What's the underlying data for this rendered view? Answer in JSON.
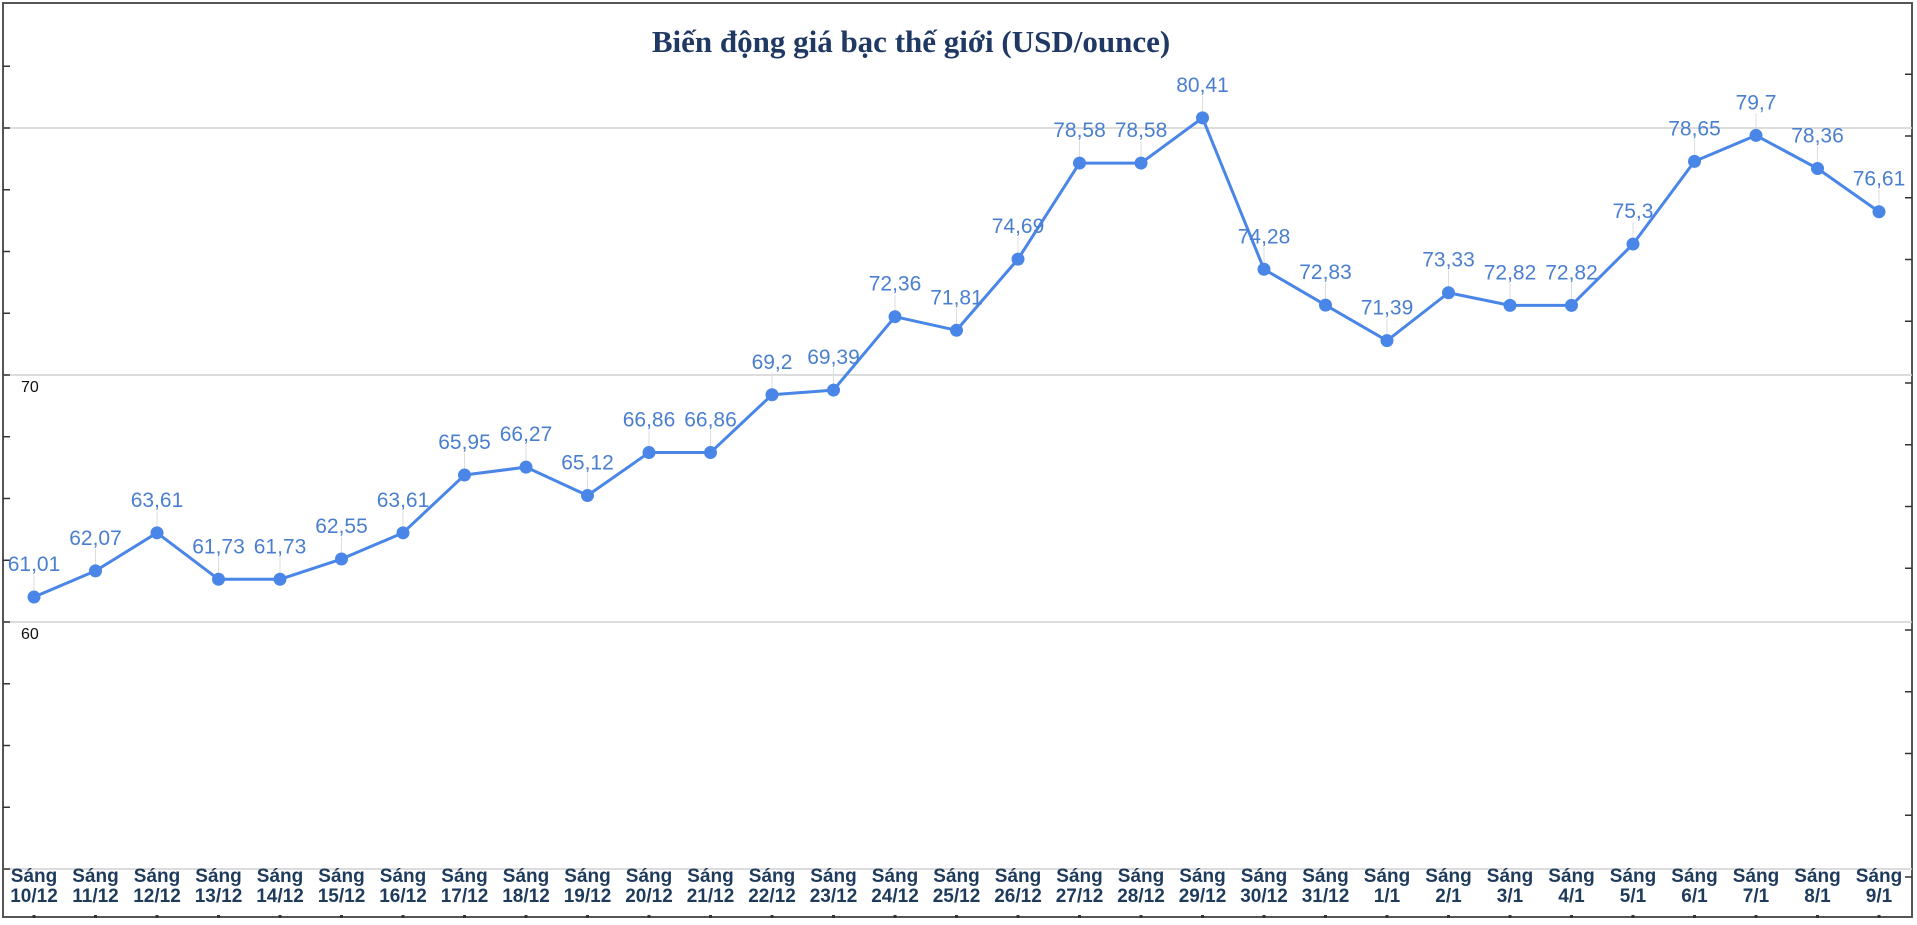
{
  "chart_data": {
    "type": "line",
    "title": "Biến động giá bạc thế giới (USD/ounce)",
    "xlabel": "",
    "ylabel": "",
    "ylim": [
      50,
      85
    ],
    "y_ticks": [
      60,
      70
    ],
    "grid": true,
    "legend": "none",
    "colors": {
      "line": "#4a86e8",
      "label": "#4a7fd0",
      "xlabel": "#1f3b5c",
      "title": "#1f3864"
    },
    "categories": [
      [
        "Sáng",
        "10/12"
      ],
      [
        "Sáng",
        "11/12"
      ],
      [
        "Sáng",
        "12/12"
      ],
      [
        "Sáng",
        "13/12"
      ],
      [
        "Sáng",
        "14/12"
      ],
      [
        "Sáng",
        "15/12"
      ],
      [
        "Sáng",
        "16/12"
      ],
      [
        "Sáng",
        "17/12"
      ],
      [
        "Sáng",
        "18/12"
      ],
      [
        "Sáng",
        "19/12"
      ],
      [
        "Sáng",
        "20/12"
      ],
      [
        "Sáng",
        "21/12"
      ],
      [
        "Sáng",
        "22/12"
      ],
      [
        "Sáng",
        "23/12"
      ],
      [
        "Sáng",
        "24/12"
      ],
      [
        "Sáng",
        "25/12"
      ],
      [
        "Sáng",
        "26/12"
      ],
      [
        "Sáng",
        "27/12"
      ],
      [
        "Sáng",
        "28/12"
      ],
      [
        "Sáng",
        "29/12"
      ],
      [
        "Sáng",
        "30/12"
      ],
      [
        "Sáng",
        "31/12"
      ],
      [
        "Sáng",
        "1/1"
      ],
      [
        "Sáng",
        "2/1"
      ],
      [
        "Sáng",
        "3/1"
      ],
      [
        "Sáng",
        "4/1"
      ],
      [
        "Sáng",
        "5/1"
      ],
      [
        "Sáng",
        "6/1"
      ],
      [
        "Sáng",
        "7/1"
      ],
      [
        "Sáng",
        "8/1"
      ],
      [
        "Sáng",
        "9/1"
      ]
    ],
    "values": [
      61.01,
      62.07,
      63.61,
      61.73,
      61.73,
      62.55,
      63.61,
      65.95,
      66.27,
      65.12,
      66.86,
      66.86,
      69.2,
      69.39,
      72.36,
      71.81,
      74.69,
      78.58,
      78.58,
      80.41,
      74.28,
      72.83,
      71.39,
      73.33,
      72.82,
      72.82,
      75.3,
      78.65,
      79.7,
      78.36,
      76.61
    ],
    "value_labels": [
      "61,01",
      "62,07",
      "63,61",
      "61,73",
      "61,73",
      "62,55",
      "63,61",
      "65,95",
      "66,27",
      "65,12",
      "66,86",
      "66,86",
      "69,2",
      "69,39",
      "72,36",
      "71,81",
      "74,69",
      "78,58",
      "78,58",
      "80,41",
      "74,28",
      "72,83",
      "71,39",
      "73,33",
      "72,82",
      "72,82",
      "75,3",
      "78,65",
      "79,7",
      "78,36",
      "76,61"
    ]
  }
}
